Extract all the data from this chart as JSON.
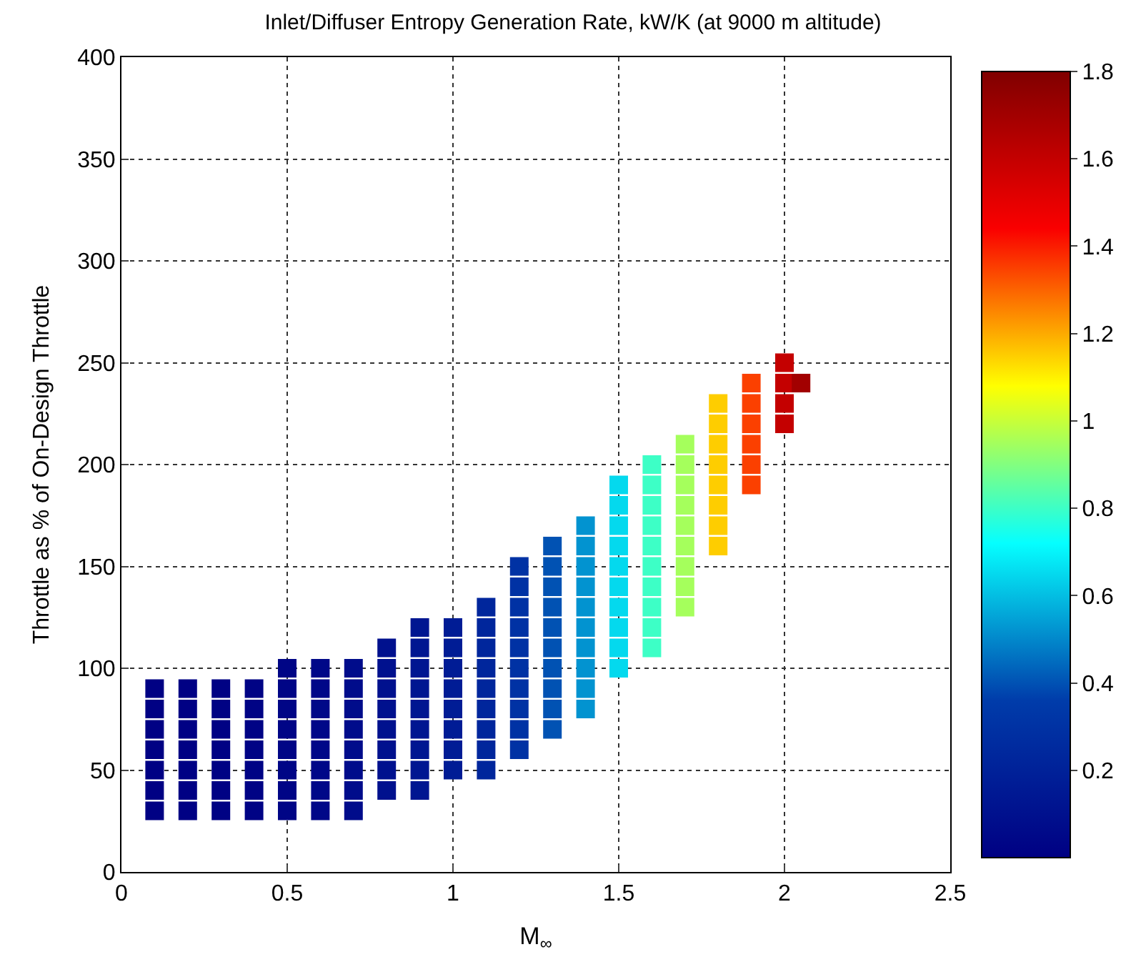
{
  "chart_data": {
    "type": "scatter",
    "title": "Inlet/Diffuser Entropy Generation Rate, kW/K (at 9000 m altitude)",
    "xlabel": "M$_{∞}$",
    "ylabel": "Throttle as % of On-Design Throttle",
    "xlim": [
      0,
      2.5
    ],
    "xticks": [
      0,
      0.5,
      1,
      1.5,
      2,
      2.5
    ],
    "ylim": [
      0,
      400
    ],
    "yticks": [
      0,
      50,
      100,
      150,
      200,
      250,
      300,
      350,
      400
    ],
    "grid": true,
    "marker": "square",
    "clim": [
      0,
      1.8
    ],
    "cticks": [
      0.2,
      0.4,
      0.6,
      0.8,
      1,
      1.2,
      1.4,
      1.6,
      1.8
    ],
    "series": [
      {
        "x": [
          0.1,
          0.1,
          0.1,
          0.1,
          0.1,
          0.1,
          0.1
        ],
        "values": [
          30,
          40,
          50,
          60,
          70,
          80,
          90
        ],
        "cvalues": [
          0.005,
          0.005,
          0.005,
          0.005,
          0.005,
          0.005,
          0.005
        ]
      },
      {
        "x": [
          0.2,
          0.2,
          0.2,
          0.2,
          0.2,
          0.2,
          0.2
        ],
        "values": [
          30,
          40,
          50,
          60,
          70,
          80,
          90
        ],
        "cvalues": [
          0.005,
          0.005,
          0.005,
          0.005,
          0.005,
          0.005,
          0.005
        ]
      },
      {
        "x": [
          0.3,
          0.3,
          0.3,
          0.3,
          0.3,
          0.3,
          0.3
        ],
        "values": [
          30,
          40,
          50,
          60,
          70,
          80,
          90
        ],
        "cvalues": [
          0.01,
          0.01,
          0.01,
          0.01,
          0.01,
          0.01,
          0.01
        ]
      },
      {
        "x": [
          0.4,
          0.4,
          0.4,
          0.4,
          0.4,
          0.4,
          0.4
        ],
        "values": [
          30,
          40,
          50,
          60,
          70,
          80,
          90
        ],
        "cvalues": [
          0.02,
          0.02,
          0.02,
          0.02,
          0.02,
          0.02,
          0.02
        ]
      },
      {
        "x": [
          0.5,
          0.5,
          0.5,
          0.5,
          0.5,
          0.5,
          0.5,
          0.5
        ],
        "values": [
          30,
          40,
          50,
          60,
          70,
          80,
          90,
          100
        ],
        "cvalues": [
          0.03,
          0.03,
          0.03,
          0.03,
          0.03,
          0.03,
          0.03,
          0.03
        ]
      },
      {
        "x": [
          0.6,
          0.6,
          0.6,
          0.6,
          0.6,
          0.6,
          0.6,
          0.6
        ],
        "values": [
          30,
          40,
          50,
          60,
          70,
          80,
          90,
          100
        ],
        "cvalues": [
          0.05,
          0.05,
          0.05,
          0.05,
          0.05,
          0.05,
          0.05,
          0.05
        ]
      },
      {
        "x": [
          0.7,
          0.7,
          0.7,
          0.7,
          0.7,
          0.7,
          0.7,
          0.7
        ],
        "values": [
          30,
          40,
          50,
          60,
          70,
          80,
          90,
          100
        ],
        "cvalues": [
          0.07,
          0.07,
          0.07,
          0.07,
          0.07,
          0.07,
          0.07,
          0.07
        ]
      },
      {
        "x": [
          0.8,
          0.8,
          0.8,
          0.8,
          0.8,
          0.8,
          0.8,
          0.8
        ],
        "values": [
          40,
          50,
          60,
          70,
          80,
          90,
          100,
          110
        ],
        "cvalues": [
          0.1,
          0.1,
          0.1,
          0.1,
          0.1,
          0.1,
          0.1,
          0.1
        ]
      },
      {
        "x": [
          0.9,
          0.9,
          0.9,
          0.9,
          0.9,
          0.9,
          0.9,
          0.9,
          0.9
        ],
        "values": [
          40,
          50,
          60,
          70,
          80,
          90,
          100,
          110,
          120
        ],
        "cvalues": [
          0.13,
          0.13,
          0.13,
          0.13,
          0.13,
          0.13,
          0.13,
          0.13,
          0.13
        ]
      },
      {
        "x": [
          1,
          1,
          1,
          1,
          1,
          1,
          1,
          1
        ],
        "values": [
          50,
          60,
          70,
          80,
          90,
          100,
          110,
          120
        ],
        "cvalues": [
          0.17,
          0.17,
          0.17,
          0.17,
          0.17,
          0.17,
          0.17,
          0.17
        ]
      },
      {
        "x": [
          1.1,
          1.1,
          1.1,
          1.1,
          1.1,
          1.1,
          1.1,
          1.1,
          1.1
        ],
        "values": [
          50,
          60,
          70,
          80,
          90,
          100,
          110,
          120,
          130
        ],
        "cvalues": [
          0.23,
          0.23,
          0.23,
          0.23,
          0.23,
          0.23,
          0.23,
          0.23,
          0.23
        ]
      },
      {
        "x": [
          1.2,
          1.2,
          1.2,
          1.2,
          1.2,
          1.2,
          1.2,
          1.2,
          1.2,
          1.2
        ],
        "values": [
          60,
          70,
          80,
          90,
          100,
          110,
          120,
          130,
          140,
          150
        ],
        "cvalues": [
          0.3,
          0.3,
          0.3,
          0.3,
          0.3,
          0.3,
          0.3,
          0.3,
          0.3,
          0.3
        ]
      },
      {
        "x": [
          1.3,
          1.3,
          1.3,
          1.3,
          1.3,
          1.3,
          1.3,
          1.3,
          1.3,
          1.3
        ],
        "values": [
          70,
          80,
          90,
          100,
          110,
          120,
          130,
          140,
          150,
          160
        ],
        "cvalues": [
          0.4,
          0.4,
          0.4,
          0.4,
          0.4,
          0.4,
          0.4,
          0.4,
          0.4,
          0.4
        ]
      },
      {
        "x": [
          1.4,
          1.4,
          1.4,
          1.4,
          1.4,
          1.4,
          1.4,
          1.4,
          1.4,
          1.4
        ],
        "values": [
          80,
          90,
          100,
          110,
          120,
          130,
          140,
          150,
          160,
          170
        ],
        "cvalues": [
          0.52,
          0.52,
          0.52,
          0.52,
          0.52,
          0.52,
          0.52,
          0.52,
          0.52,
          0.52
        ]
      },
      {
        "x": [
          1.5,
          1.5,
          1.5,
          1.5,
          1.5,
          1.5,
          1.5,
          1.5,
          1.5,
          1.5
        ],
        "values": [
          100,
          110,
          120,
          130,
          140,
          150,
          160,
          170,
          180,
          190
        ],
        "cvalues": [
          0.65,
          0.65,
          0.65,
          0.65,
          0.65,
          0.65,
          0.65,
          0.65,
          0.65,
          0.65
        ]
      },
      {
        "x": [
          1.6,
          1.6,
          1.6,
          1.6,
          1.6,
          1.6,
          1.6,
          1.6,
          1.6,
          1.6
        ],
        "values": [
          110,
          120,
          130,
          140,
          150,
          160,
          170,
          180,
          190,
          200
        ],
        "cvalues": [
          0.8,
          0.8,
          0.8,
          0.8,
          0.8,
          0.8,
          0.8,
          0.8,
          0.8,
          0.8
        ]
      },
      {
        "x": [
          1.7,
          1.7,
          1.7,
          1.7,
          1.7,
          1.7,
          1.7,
          1.7,
          1.7
        ],
        "values": [
          130,
          140,
          150,
          160,
          170,
          180,
          190,
          200,
          210
        ],
        "cvalues": [
          0.95,
          0.95,
          0.95,
          0.95,
          0.95,
          0.95,
          0.95,
          0.95,
          0.95
        ]
      },
      {
        "x": [
          1.8,
          1.8,
          1.8,
          1.8,
          1.8,
          1.8,
          1.8,
          1.8
        ],
        "values": [
          160,
          170,
          180,
          190,
          200,
          210,
          220,
          230
        ],
        "cvalues": [
          1.15,
          1.15,
          1.15,
          1.15,
          1.15,
          1.15,
          1.15,
          1.15
        ]
      },
      {
        "x": [
          1.9,
          1.9,
          1.9,
          1.9,
          1.9,
          1.9
        ],
        "values": [
          190,
          200,
          210,
          220,
          230,
          240
        ],
        "cvalues": [
          1.35,
          1.35,
          1.35,
          1.35,
          1.35,
          1.35
        ]
      },
      {
        "x": [
          2,
          2,
          2,
          2
        ],
        "values": [
          220,
          230,
          240,
          250
        ],
        "cvalues": [
          1.6,
          1.6,
          1.6,
          1.6
        ]
      },
      {
        "x": [
          2.05
        ],
        "values": [
          240
        ],
        "cvalues": [
          1.7
        ]
      }
    ]
  }
}
